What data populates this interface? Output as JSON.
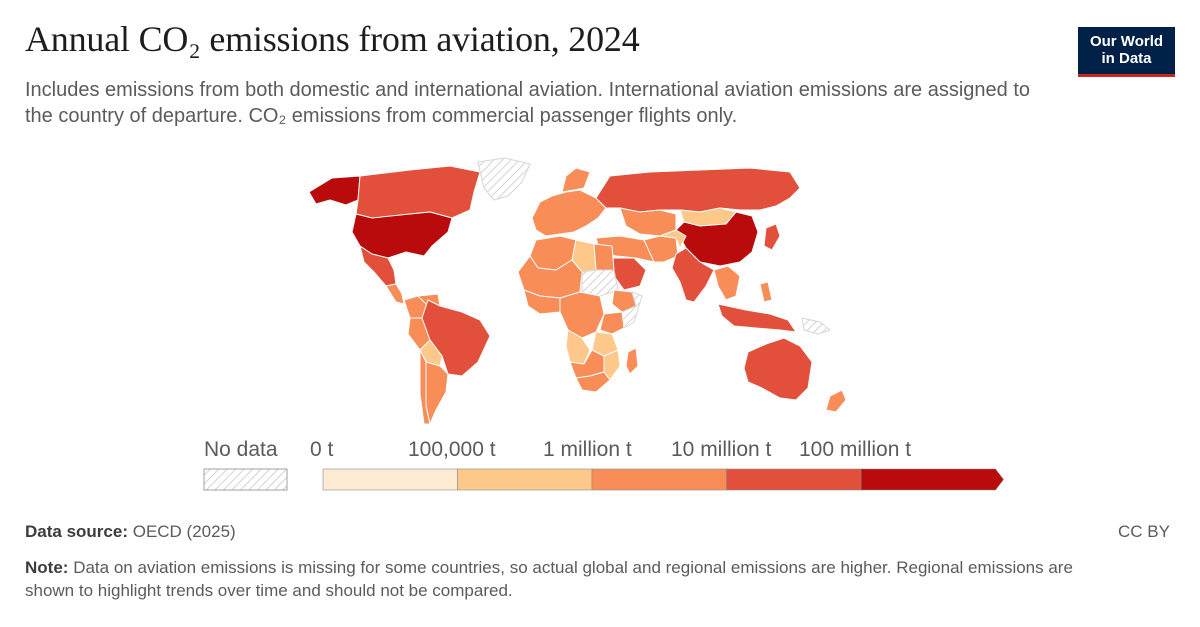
{
  "header": {
    "title": "Annual CO₂ emissions from aviation, 2024",
    "subtitle": "Includes emissions from both domestic and international aviation. International aviation emissions are assigned to the country of departure. CO₂ emissions from commercial passenger flights only."
  },
  "logo": {
    "line1": "Our World",
    "line2": "in Data",
    "bg_color": "#002147",
    "accent_color": "#ce261e"
  },
  "legend": {
    "no_data_label": "No data",
    "bins": [
      {
        "label": "0 t",
        "color": "#feebd4"
      },
      {
        "label": "100,000 t",
        "color": "#fdc88a"
      },
      {
        "label": "1 million t",
        "color": "#f98d58"
      },
      {
        "label": "10 million t",
        "color": "#e2503c"
      },
      {
        "label": "100 million t",
        "color": "#b90b0b"
      }
    ]
  },
  "map_data": {
    "metric": "Annual CO₂ emissions from aviation",
    "year": 2024,
    "bins_t": [
      0,
      100000,
      1000000,
      10000000,
      100000000
    ],
    "regions": [
      {
        "name": "United States",
        "bin": 5
      },
      {
        "name": "China",
        "bin": 5
      },
      {
        "name": "Canada",
        "bin": 4
      },
      {
        "name": "Russia",
        "bin": 4
      },
      {
        "name": "Brazil",
        "bin": 4
      },
      {
        "name": "Australia",
        "bin": 4
      },
      {
        "name": "India",
        "bin": 4
      },
      {
        "name": "Mexico",
        "bin": 4
      },
      {
        "name": "Indonesia",
        "bin": 4
      },
      {
        "name": "Japan",
        "bin": 4
      },
      {
        "name": "Saudi Arabia",
        "bin": 4
      },
      {
        "name": "Argentina",
        "bin": 3
      },
      {
        "name": "Kazakhstan",
        "bin": 3
      },
      {
        "name": "Iran",
        "bin": 3
      },
      {
        "name": "Algeria",
        "bin": 3
      },
      {
        "name": "Peru",
        "bin": 3
      },
      {
        "name": "Colombia",
        "bin": 3
      },
      {
        "name": "Ethiopia",
        "bin": 3
      },
      {
        "name": "South Africa",
        "bin": 3
      },
      {
        "name": "Egypt",
        "bin": 3
      },
      {
        "name": "Kenya",
        "bin": 3
      },
      {
        "name": "Mongolia",
        "bin": 2
      },
      {
        "name": "Libya",
        "bin": 2
      },
      {
        "name": "Angola",
        "bin": 2
      },
      {
        "name": "Bolivia",
        "bin": 2
      },
      {
        "name": "Tanzania",
        "bin": 2
      },
      {
        "name": "Afghanistan",
        "bin": 2
      },
      {
        "name": "Mozambique",
        "bin": 2
      },
      {
        "name": "Chad",
        "bin": 1
      },
      {
        "name": "Zambia",
        "bin": 1
      },
      {
        "name": "Zimbabwe",
        "bin": 1
      }
    ],
    "no_data": [
      "Greenland",
      "Sudan",
      "DR Congo",
      "Niger",
      "Mali",
      "Somalia",
      "Botswana",
      "Papua New Guinea"
    ]
  },
  "footer": {
    "source_label": "Data source:",
    "source_value": "OECD (2025)",
    "note_label": "Note:",
    "note_text": "Data on aviation emissions is missing for some countries, so actual global and regional emissions are higher. Regional emissions are shown to highlight trends over time and should not be compared.",
    "license": "CC BY"
  }
}
